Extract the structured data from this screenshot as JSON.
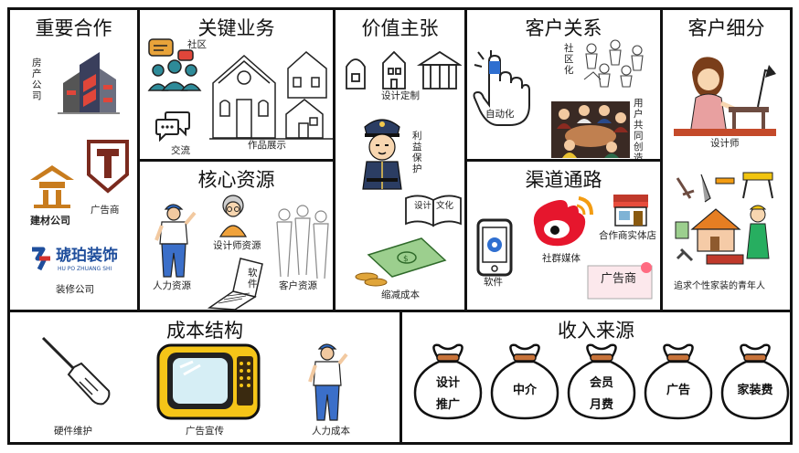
{
  "key_partners": {
    "title": "重要合作",
    "real_estate": "房产公司",
    "advertiser": "广告商",
    "building_materials_logo": "建材公司",
    "decor_brand_cn": "琥珀装饰",
    "decor_brand_pinyin": "HU PO ZHUANG SHI",
    "decor_company": "装修公司"
  },
  "key_activities": {
    "title": "关键业务",
    "community": "社区",
    "exchange": "交流",
    "portfolio": "作品展示"
  },
  "value_propositions": {
    "title": "价值主张",
    "custom_design": "设计定制",
    "rights_protection": "利益保护",
    "book_left": "设计",
    "book_right": "文化",
    "cost_reduction": "缩减成本"
  },
  "customer_relationships": {
    "title": "客户关系",
    "automation": "自动化",
    "communitization": "社区化",
    "co_creation": "用户共同创造"
  },
  "customer_segments": {
    "title": "客户细分",
    "designer": "设计师",
    "young_people": "追求个性家装的青年人"
  },
  "key_resources": {
    "title": "核心资源",
    "designer_resources": "设计师资源",
    "software": "软件",
    "human_resources": "人力资源",
    "customer_resources": "客户资源"
  },
  "channels": {
    "title": "渠道通路",
    "software": "软件",
    "social_media": "社群媒体",
    "partner_stores": "合作商实体店",
    "advertiser": "广告商"
  },
  "cost_structure": {
    "title": "成本结构",
    "hardware": "硬件维护",
    "advertising": "广告宣传",
    "labor": "人力成本"
  },
  "revenue_streams": {
    "title": "收入来源",
    "bags": [
      {
        "line1": "设计",
        "line2": "推广"
      },
      {
        "line1": "中介",
        "line2": ""
      },
      {
        "line1": "会员",
        "line2": "月费"
      },
      {
        "line1": "广告",
        "line2": ""
      },
      {
        "line1": "家装费",
        "line2": ""
      }
    ]
  },
  "colors": {
    "border": "#111111",
    "weibo_red": "#e6162d",
    "tv_yellow": "#f5c518",
    "bag_brown": "#c8733a",
    "police_navy": "#2b3d63",
    "decor_red": "#d2322d",
    "decor_blue": "#1f4e9c",
    "teal": "#2e8b99"
  }
}
